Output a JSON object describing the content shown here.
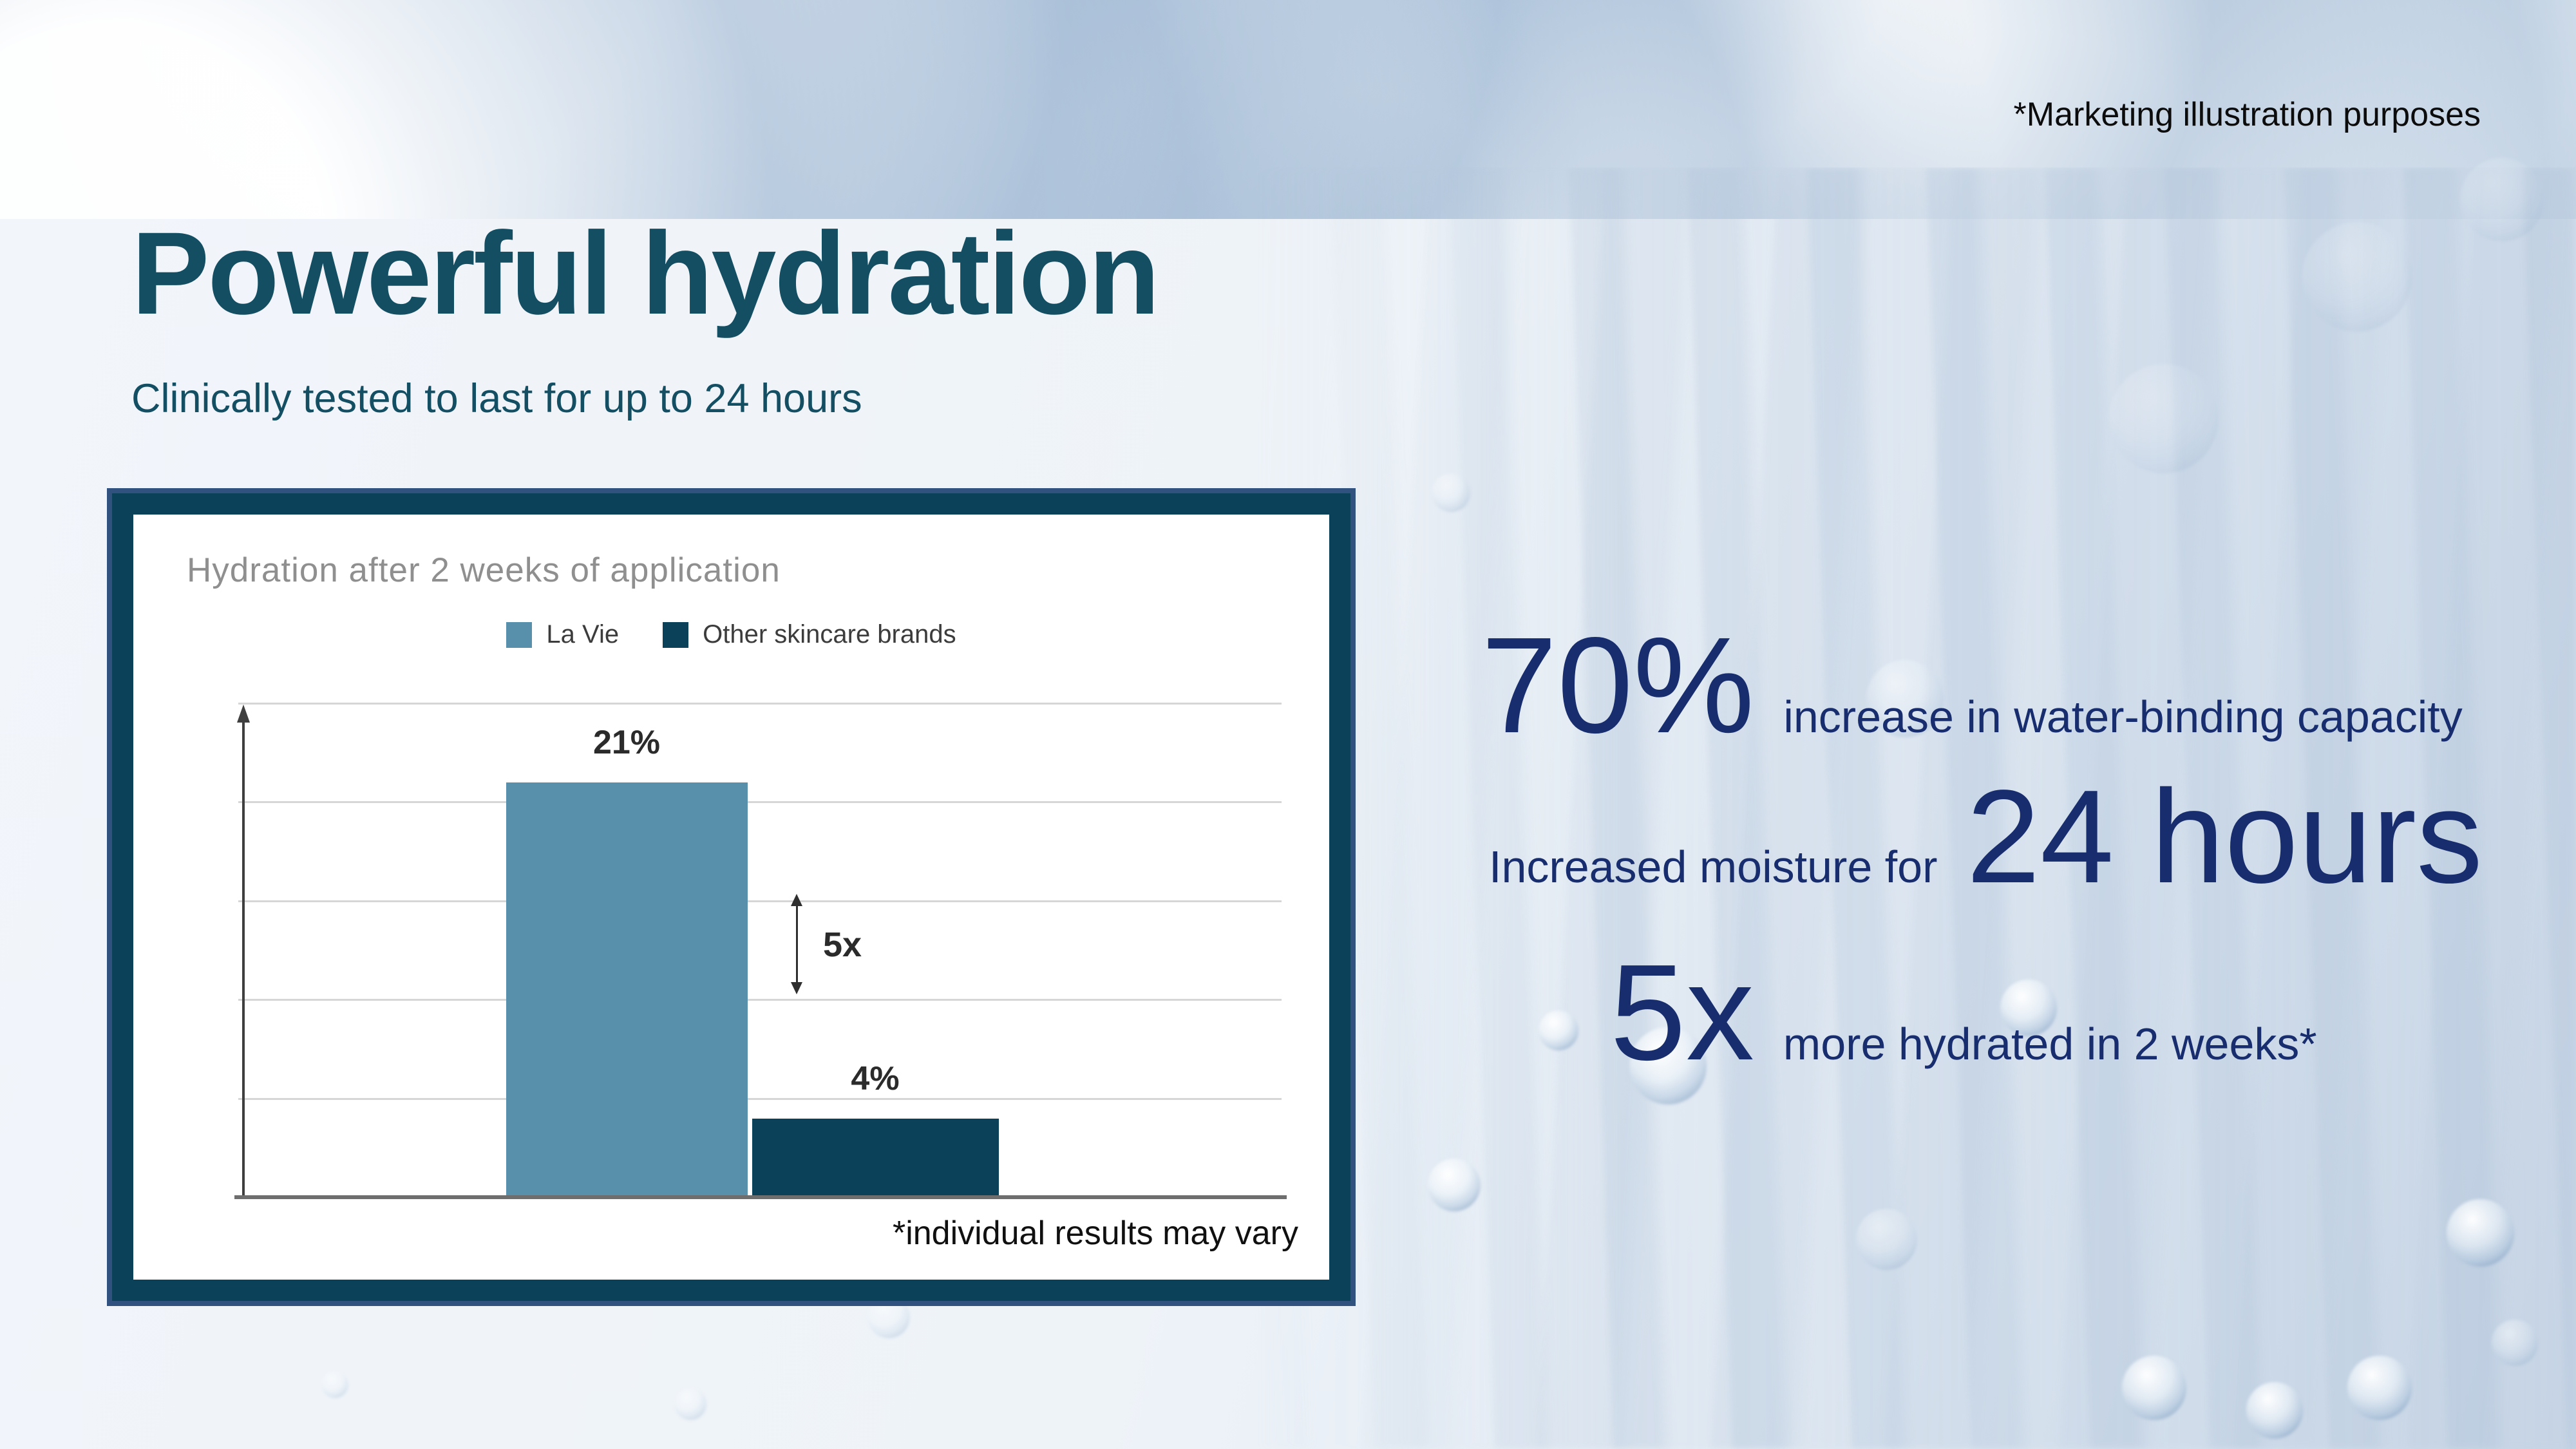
{
  "slide": {
    "disclaimer": "*Marketing illustration purposes",
    "title": "Powerful hydration",
    "subtitle": "Clinically tested to last for up to 24 hours"
  },
  "chart_card": {
    "footnote": "*individual results may vary"
  },
  "chart_data": {
    "type": "bar",
    "title": "Hydration after 2 weeks of application",
    "categories": [
      "La Vie",
      "Other skincare brands"
    ],
    "values": [
      21,
      4
    ],
    "value_labels": [
      "21%",
      "4%"
    ],
    "series_colors": [
      "#5890ac",
      "#0c4259"
    ],
    "legend": [
      {
        "label": "La Vie",
        "color": "#5890ac"
      },
      {
        "label": "Other skincare brands",
        "color": "#0c4259"
      }
    ],
    "legend_position": "top",
    "annotation": "5x",
    "ylim": [
      0,
      25
    ],
    "gridlines": [
      5,
      10,
      15,
      20,
      25
    ],
    "grid": true,
    "xlabel": "",
    "ylabel": ""
  },
  "stats": [
    {
      "value": "70%",
      "suffix": "increase in water-binding capacity"
    },
    {
      "prefix": "Increased moisture for",
      "value": "24 hours"
    },
    {
      "value": "5x",
      "suffix": "more hydrated in 2 weeks*"
    }
  ],
  "colors": {
    "heading_teal": "#134e62",
    "stat_navy": "#182d6e",
    "card_frame": "#0c4259",
    "card_edge": "#31517f",
    "bar_lavie": "#5890ac",
    "bar_other": "#0c4259",
    "gridline_gray": "#d6d6d6",
    "chart_title_gray": "#8f8f8f"
  }
}
